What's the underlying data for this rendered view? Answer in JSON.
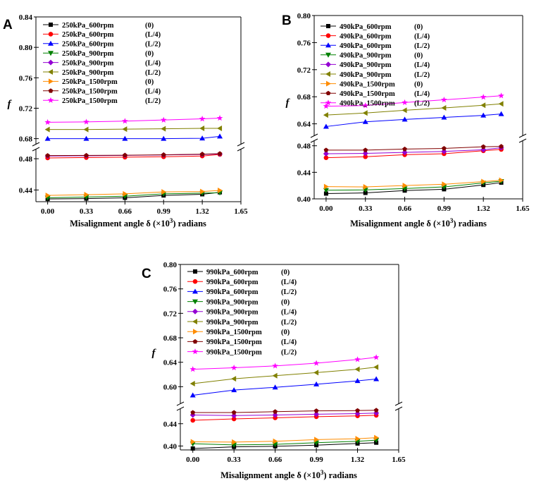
{
  "chart_data": [
    {
      "panel": "A",
      "type": "line",
      "xlabel_main": "Misalignment angle δ (×10",
      "xlabel_sup": "3",
      "xlabel_end": ") radians",
      "ylabel": "f",
      "xlim": [
        -0.1,
        1.65
      ],
      "x_ticks": [
        "0.00",
        "0.33",
        "0.66",
        "0.99",
        "1.32",
        "1.65"
      ],
      "y_ticks_upper": [
        "0.68",
        "0.72",
        "0.76",
        "0.80",
        "0.84"
      ],
      "y_ticks_lower": [
        "0.44",
        "0.48"
      ],
      "ylim_upper": [
        0.675,
        0.84
      ],
      "ylim_lower": [
        0.425,
        0.49
      ],
      "x": [
        0.0,
        0.33,
        0.66,
        0.99,
        1.32,
        1.47
      ],
      "series": [
        {
          "name": "250kPa_600rpm",
          "pos": "(0)",
          "color": "#000000",
          "marker": "square",
          "values": [
            0.4285,
            0.429,
            0.43,
            0.433,
            0.4345,
            0.437
          ]
        },
        {
          "name": "250kPa_600rpm",
          "pos": "(L/4)",
          "color": "#ff0000",
          "marker": "circle",
          "values": [
            0.481,
            0.4815,
            0.482,
            0.4825,
            0.4835,
            0.4855
          ]
        },
        {
          "name": "250kPa_600rpm",
          "pos": "(L/2)",
          "color": "#0000ff",
          "marker": "triangle-up",
          "values": [
            0.68,
            0.68,
            0.68,
            0.68,
            0.6805,
            0.683
          ]
        },
        {
          "name": "250kPa_900rpm",
          "pos": "(0)",
          "color": "#008000",
          "marker": "triangle-down",
          "values": [
            0.43,
            0.431,
            0.432,
            0.435,
            0.436,
            0.4365
          ]
        },
        {
          "name": "250kPa_900rpm",
          "pos": "(L/4)",
          "color": "#9400d3",
          "marker": "diamond",
          "values": [
            0.4835,
            0.4838,
            0.4842,
            0.4848,
            0.4855,
            0.486
          ]
        },
        {
          "name": "250kPa_900rpm",
          "pos": "(L/2)",
          "color": "#808000",
          "marker": "triangle-left",
          "values": [
            0.692,
            0.692,
            0.6925,
            0.693,
            0.6935,
            0.6935
          ]
        },
        {
          "name": "250kPa_1500rpm",
          "pos": "(0)",
          "color": "#ff8c00",
          "marker": "triangle-right",
          "values": [
            0.433,
            0.434,
            0.435,
            0.4375,
            0.438,
            0.4395
          ]
        },
        {
          "name": "250kPa_1500rpm",
          "pos": "(L/4)",
          "color": "#800000",
          "marker": "pentagon",
          "values": [
            0.484,
            0.4842,
            0.4845,
            0.485,
            0.4858,
            0.4865
          ]
        },
        {
          "name": "250kPa_1500rpm",
          "pos": "(L/2)",
          "color": "#ff00ff",
          "marker": "star",
          "values": [
            0.7015,
            0.702,
            0.703,
            0.7045,
            0.706,
            0.707
          ]
        }
      ]
    },
    {
      "panel": "B",
      "type": "line",
      "xlabel_main": "Misalignment angle δ (×10",
      "xlabel_sup": "3",
      "xlabel_end": ") radians",
      "ylabel": "f",
      "xlim": [
        -0.1,
        1.65
      ],
      "x_ticks": [
        "0.00",
        "0.33",
        "0.66",
        "0.99",
        "1.32",
        "1.65"
      ],
      "y_ticks_upper": [
        "0.64",
        "0.68",
        "0.72",
        "0.76",
        "0.80"
      ],
      "y_ticks_lower": [
        "0.40",
        "0.44",
        "0.48"
      ],
      "ylim_upper": [
        0.625,
        0.8
      ],
      "ylim_lower": [
        0.4,
        0.485
      ],
      "x": [
        0.0,
        0.33,
        0.66,
        0.99,
        1.32,
        1.47
      ],
      "series": [
        {
          "name": "490kPa_600rpm",
          "pos": "(0)",
          "color": "#000000",
          "marker": "square",
          "values": [
            0.408,
            0.409,
            0.4125,
            0.4145,
            0.421,
            0.4245
          ]
        },
        {
          "name": "490kPa_600rpm",
          "pos": "(L/4)",
          "color": "#ff0000",
          "marker": "circle",
          "values": [
            0.462,
            0.4635,
            0.4665,
            0.468,
            0.4725,
            0.4745
          ]
        },
        {
          "name": "490kPa_600rpm",
          "pos": "(L/2)",
          "color": "#0000ff",
          "marker": "triangle-up",
          "values": [
            0.636,
            0.643,
            0.6465,
            0.6495,
            0.6525,
            0.6545
          ]
        },
        {
          "name": "490kPa_900rpm",
          "pos": "(0)",
          "color": "#008000",
          "marker": "triangle-down",
          "values": [
            0.413,
            0.4135,
            0.4155,
            0.418,
            0.424,
            0.4265
          ]
        },
        {
          "name": "490kPa_900rpm",
          "pos": "(L/4)",
          "color": "#9400d3",
          "marker": "diamond",
          "values": [
            0.468,
            0.4685,
            0.47,
            0.4715,
            0.474,
            0.477
          ]
        },
        {
          "name": "490kPa_900rpm",
          "pos": "(L/2)",
          "color": "#808000",
          "marker": "triangle-left",
          "values": [
            0.653,
            0.656,
            0.66,
            0.6635,
            0.6675,
            0.6695
          ]
        },
        {
          "name": "490kPa_1500rpm",
          "pos": "(0)",
          "color": "#ff8c00",
          "marker": "triangle-right",
          "values": [
            0.4185,
            0.418,
            0.42,
            0.422,
            0.426,
            0.428
          ]
        },
        {
          "name": "490kPa_1500rpm",
          "pos": "(L/4)",
          "color": "#800000",
          "marker": "pentagon",
          "values": [
            0.4735,
            0.4735,
            0.475,
            0.476,
            0.4785,
            0.479
          ]
        },
        {
          "name": "490kPa_1500rpm",
          "pos": "(L/2)",
          "color": "#ff00ff",
          "marker": "star",
          "values": [
            0.666,
            0.667,
            0.6715,
            0.6755,
            0.6795,
            0.6815
          ]
        }
      ]
    },
    {
      "panel": "C",
      "type": "line",
      "xlabel_main": "Misalignment angle δ (×10",
      "xlabel_sup": "3",
      "xlabel_end": ") radians",
      "ylabel": "f",
      "xlim": [
        -0.1,
        1.65
      ],
      "x_ticks": [
        "0.00",
        "0.33",
        "0.66",
        "0.99",
        "1.32",
        "1.65"
      ],
      "y_ticks_upper": [
        "0.60",
        "0.64",
        "0.68",
        "0.72",
        "0.76",
        "0.80"
      ],
      "y_ticks_lower": [
        "0.40",
        "0.44"
      ],
      "ylim_upper": [
        0.575,
        0.8
      ],
      "ylim_lower": [
        0.393,
        0.465
      ],
      "x": [
        0.0,
        0.33,
        0.66,
        0.99,
        1.32,
        1.47
      ],
      "series": [
        {
          "name": "990kPa_600rpm",
          "pos": "(0)",
          "color": "#000000",
          "marker": "square",
          "values": [
            0.3955,
            0.3985,
            0.3995,
            0.4015,
            0.4045,
            0.406
          ]
        },
        {
          "name": "990kPa_600rpm",
          "pos": "(L/4)",
          "color": "#ff0000",
          "marker": "circle",
          "values": [
            0.446,
            0.4485,
            0.4505,
            0.4525,
            0.454,
            0.455
          ]
        },
        {
          "name": "990kPa_600rpm",
          "pos": "(L/2)",
          "color": "#0000ff",
          "marker": "triangle-up",
          "values": [
            0.586,
            0.5945,
            0.599,
            0.604,
            0.6095,
            0.6125
          ]
        },
        {
          "name": "990kPa_900rpm",
          "pos": "(0)",
          "color": "#008000",
          "marker": "triangle-down",
          "values": [
            0.404,
            0.402,
            0.403,
            0.406,
            0.4085,
            0.4105
          ]
        },
        {
          "name": "990kPa_900rpm",
          "pos": "(L/4)",
          "color": "#9400d3",
          "marker": "diamond",
          "values": [
            0.4555,
            0.4545,
            0.4555,
            0.457,
            0.458,
            0.459
          ]
        },
        {
          "name": "990kPa_900rpm",
          "pos": "(L/2)",
          "color": "#808000",
          "marker": "triangle-left",
          "values": [
            0.605,
            0.613,
            0.618,
            0.623,
            0.6285,
            0.632
          ]
        },
        {
          "name": "990kPa_1500rpm",
          "pos": "(0)",
          "color": "#ff8c00",
          "marker": "triangle-right",
          "values": [
            0.4075,
            0.407,
            0.4085,
            0.4115,
            0.413,
            0.415
          ]
        },
        {
          "name": "990kPa_1500rpm",
          "pos": "(L/4)",
          "color": "#800000",
          "marker": "pentagon",
          "values": [
            0.46,
            0.46,
            0.4615,
            0.463,
            0.4635,
            0.464
          ]
        },
        {
          "name": "990kPa_1500rpm",
          "pos": "(L/2)",
          "color": "#ff00ff",
          "marker": "star",
          "values": [
            0.6285,
            0.631,
            0.634,
            0.6385,
            0.6445,
            0.648
          ]
        }
      ]
    }
  ]
}
